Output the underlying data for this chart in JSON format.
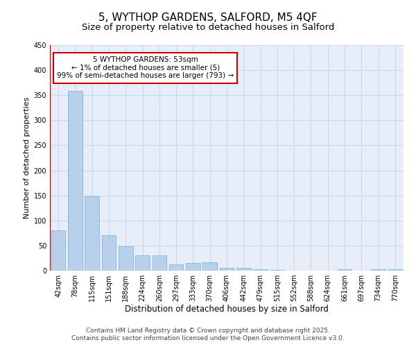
{
  "title_line1": "5, WYTHOP GARDENS, SALFORD, M5 4QF",
  "title_line2": "Size of property relative to detached houses in Salford",
  "xlabel": "Distribution of detached houses by size in Salford",
  "ylabel": "Number of detached properties",
  "categories": [
    "42sqm",
    "78sqm",
    "115sqm",
    "151sqm",
    "188sqm",
    "224sqm",
    "260sqm",
    "297sqm",
    "333sqm",
    "370sqm",
    "406sqm",
    "442sqm",
    "479sqm",
    "515sqm",
    "552sqm",
    "588sqm",
    "624sqm",
    "661sqm",
    "697sqm",
    "734sqm",
    "770sqm"
  ],
  "values": [
    80,
    358,
    148,
    70,
    48,
    30,
    30,
    13,
    15,
    17,
    5,
    6,
    3,
    1,
    0,
    0,
    0,
    3,
    0,
    3,
    3
  ],
  "bar_color": "#b8d0ea",
  "bar_edge_color": "#6baed6",
  "annotation_box_text": "5 WYTHOP GARDENS: 53sqm\n← 1% of detached houses are smaller (5)\n99% of semi-detached houses are larger (793) →",
  "annotation_box_color": "#ffffff",
  "annotation_box_edge_color": "#cc0000",
  "red_line_x": -0.5,
  "ylim": [
    0,
    450
  ],
  "yticks": [
    0,
    50,
    100,
    150,
    200,
    250,
    300,
    350,
    400,
    450
  ],
  "grid_color": "#c8d8ee",
  "background_color": "#e8eef8",
  "footer_line1": "Contains HM Land Registry data © Crown copyright and database right 2025.",
  "footer_line2": "Contains public sector information licensed under the Open Government Licence v3.0.",
  "title_fontsize": 11,
  "subtitle_fontsize": 9.5,
  "xlabel_fontsize": 8.5,
  "ylabel_fontsize": 8,
  "tick_fontsize": 7,
  "annotation_fontsize": 7.5,
  "footer_fontsize": 6.5
}
